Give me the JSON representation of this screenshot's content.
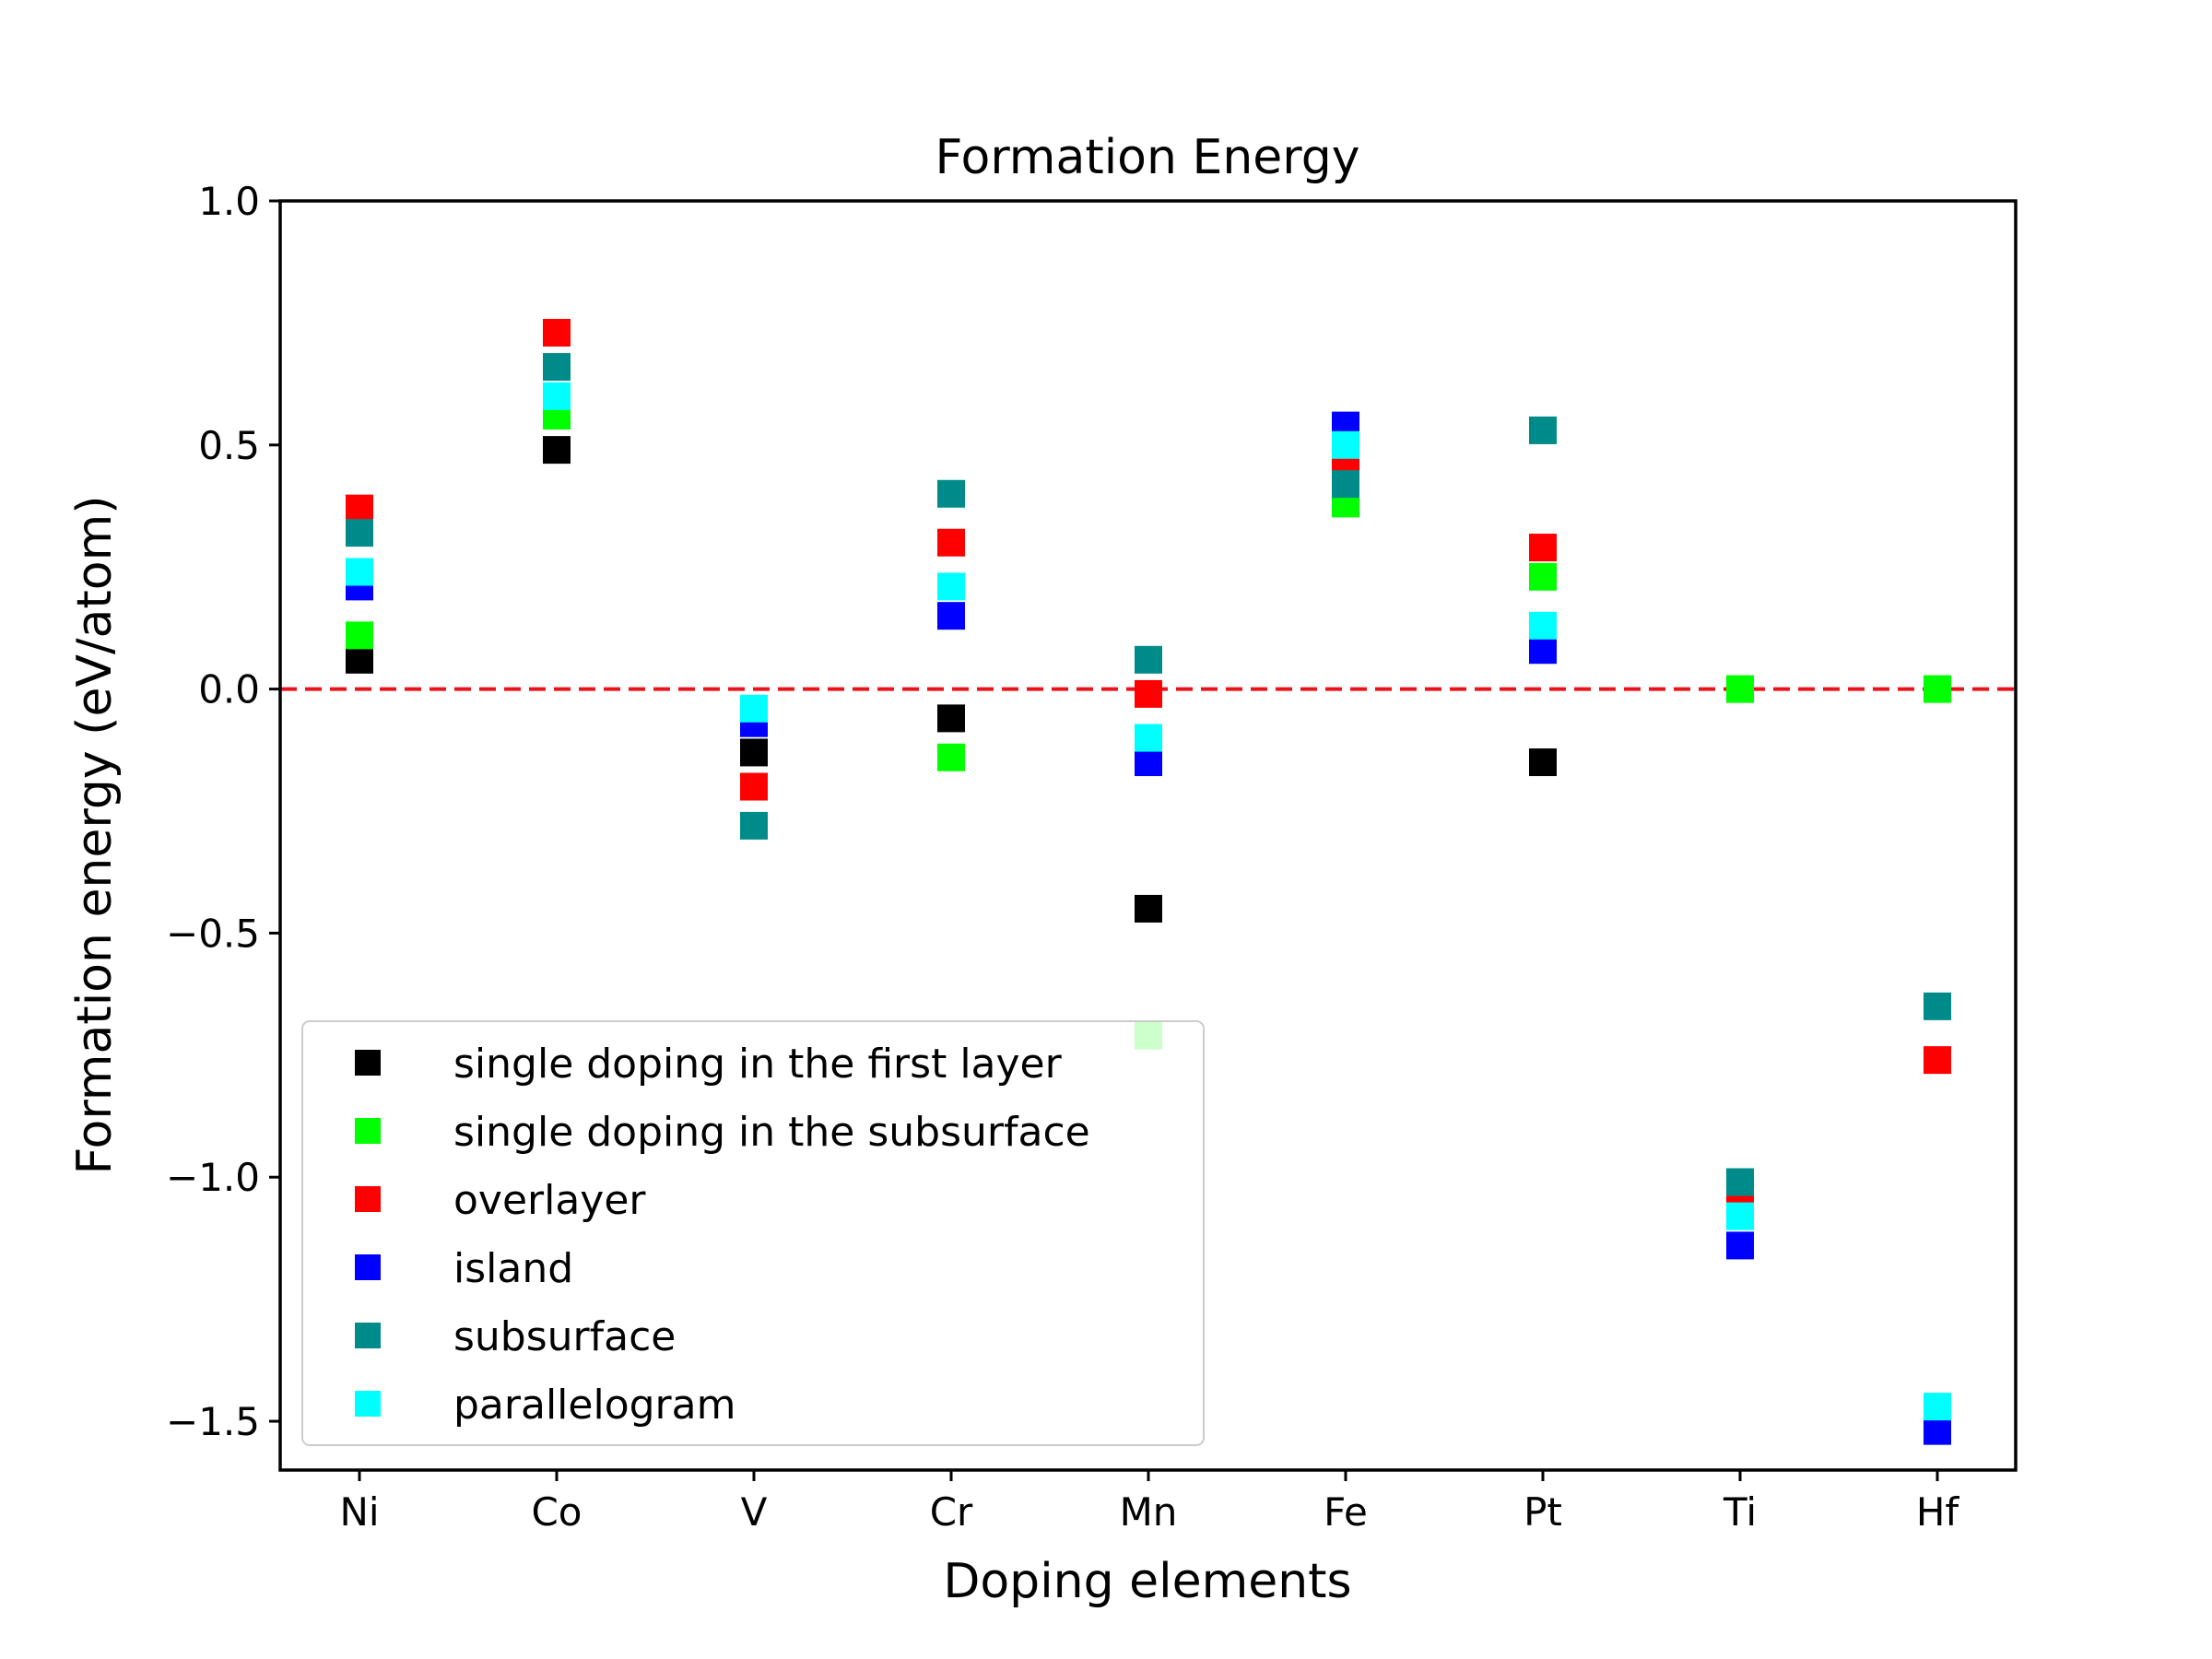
{
  "chart_data": {
    "type": "scatter",
    "title": "Formation Energy",
    "xlabel": "Doping elements",
    "ylabel": "Formation energy (eV/atom)",
    "categories": [
      "Ni",
      "Co",
      "V",
      "Cr",
      "Mn",
      "Fe",
      "Pt",
      "Ti",
      "Hf"
    ],
    "ylim": [
      -1.6,
      1.0
    ],
    "yticks": [
      1.0,
      0.5,
      0.0,
      -0.5,
      -1.0,
      -1.5
    ],
    "ytick_labels": [
      "1.0",
      "0.5",
      "0.0",
      "−0.5",
      "−1.0",
      "−1.5"
    ],
    "grid": false,
    "legend_position": "lower-left",
    "reference_line": {
      "y": 0.0,
      "style": "dashed",
      "color": "#e8141b"
    },
    "series": [
      {
        "name": "single doping in the first layer",
        "color": "#000000",
        "values": [
          0.06,
          0.49,
          -0.13,
          -0.06,
          -0.45,
          null,
          -0.15,
          null,
          null
        ]
      },
      {
        "name": "single doping in the subsurface",
        "color": "#00ff00",
        "values": [
          0.11,
          0.56,
          null,
          -0.14,
          -0.71,
          0.38,
          0.23,
          0.0,
          0.0
        ]
      },
      {
        "name": "overlayer",
        "color": "#ff0000",
        "values": [
          0.37,
          0.73,
          -0.2,
          0.3,
          -0.01,
          0.47,
          0.29,
          -1.04,
          -0.76
        ]
      },
      {
        "name": "island",
        "color": "#0000ff",
        "values": [
          0.21,
          null,
          -0.07,
          0.15,
          -0.15,
          0.54,
          0.08,
          -1.14,
          -1.52
        ]
      },
      {
        "name": "subsurface",
        "color": "#008b8b",
        "values": [
          0.32,
          0.66,
          -0.28,
          0.4,
          0.06,
          0.42,
          0.53,
          -1.01,
          -0.65
        ]
      },
      {
        "name": "parallelogram",
        "color": "#00ffff",
        "values": [
          0.24,
          0.6,
          -0.04,
          0.21,
          -0.1,
          0.5,
          0.13,
          -1.08,
          -1.47
        ]
      }
    ]
  }
}
